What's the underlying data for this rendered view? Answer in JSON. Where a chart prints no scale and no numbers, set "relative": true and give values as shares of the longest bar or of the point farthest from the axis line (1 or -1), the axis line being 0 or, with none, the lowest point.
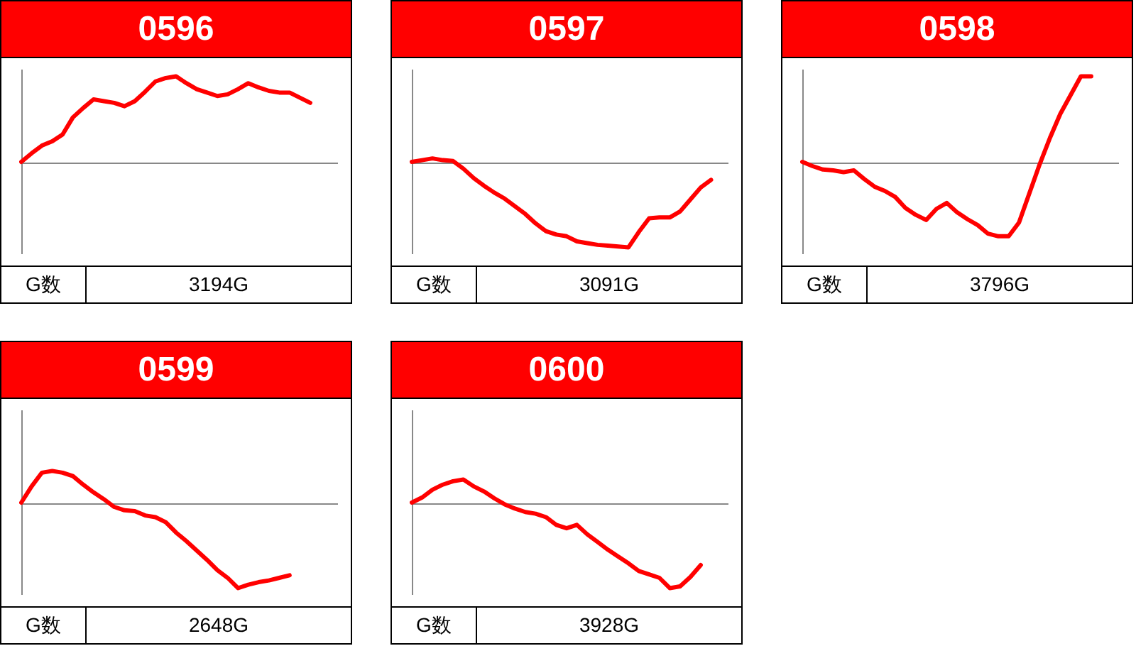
{
  "chart_data": [
    {
      "type": "line",
      "title": "0596",
      "relative": true,
      "categories": [
        null,
        null,
        null,
        null,
        null,
        null,
        null,
        null,
        null,
        null,
        null,
        null,
        null,
        null,
        null,
        null,
        null,
        null,
        null,
        null,
        null,
        null,
        null,
        null,
        null,
        null,
        null,
        null,
        null,
        null,
        null
      ],
      "series": [
        {
          "color": "#ff0000",
          "values": [
            0,
            0.1,
            0.19,
            0.24,
            0.32,
            0.52,
            0.63,
            0.73,
            0.71,
            0.69,
            0.65,
            0.71,
            0.82,
            0.94,
            0.98,
            1,
            0.92,
            0.85,
            0.81,
            0.77,
            0.79,
            0.85,
            0.92,
            0.87,
            0.83,
            0.81,
            0.81,
            0.75,
            0.69,
            null,
            null
          ]
        }
      ],
      "annotations": [
        "G数",
        "3194G"
      ]
    },
    {
      "type": "line",
      "title": "0597",
      "relative": true,
      "categories": [
        null,
        null,
        null,
        null,
        null,
        null,
        null,
        null,
        null,
        null,
        null,
        null,
        null,
        null,
        null,
        null,
        null,
        null,
        null,
        null,
        null,
        null,
        null,
        null,
        null,
        null,
        null,
        null,
        null,
        null,
        null
      ],
      "series": [
        {
          "color": "#ff0000",
          "values": [
            0,
            0.02,
            0.04,
            0.02,
            0.01,
            -0.08,
            -0.19,
            -0.28,
            -0.36,
            -0.43,
            -0.52,
            -0.61,
            -0.72,
            -0.81,
            -0.85,
            -0.87,
            -0.93,
            -0.95,
            -0.97,
            -0.98,
            -0.99,
            -1,
            -0.82,
            -0.66,
            -0.65,
            -0.65,
            -0.58,
            -0.44,
            -0.3,
            -0.21,
            null
          ]
        }
      ],
      "annotations": [
        "G数",
        "3091G"
      ]
    },
    {
      "type": "line",
      "title": "0598",
      "relative": true,
      "categories": [
        null,
        null,
        null,
        null,
        null,
        null,
        null,
        null,
        null,
        null,
        null,
        null,
        null,
        null,
        null,
        null,
        null,
        null,
        null,
        null,
        null,
        null,
        null,
        null,
        null,
        null,
        null,
        null,
        null,
        null,
        null
      ],
      "series": [
        {
          "color": "#ff0000",
          "values": [
            0,
            -0.05,
            -0.09,
            -0.1,
            -0.12,
            -0.1,
            -0.2,
            -0.29,
            -0.34,
            -0.41,
            -0.54,
            -0.62,
            -0.68,
            -0.55,
            -0.48,
            -0.59,
            -0.67,
            -0.74,
            -0.84,
            -0.87,
            -0.87,
            -0.71,
            -0.37,
            -0.03,
            0.28,
            0.56,
            0.78,
            1,
            1,
            null,
            null
          ]
        }
      ],
      "annotations": [
        "G数",
        "3796G"
      ]
    },
    {
      "type": "line",
      "title": "0599",
      "relative": true,
      "categories": [
        null,
        null,
        null,
        null,
        null,
        null,
        null,
        null,
        null,
        null,
        null,
        null,
        null,
        null,
        null,
        null,
        null,
        null,
        null,
        null,
        null,
        null,
        null,
        null,
        null,
        null,
        null,
        null,
        null,
        null,
        null
      ],
      "series": [
        {
          "color": "#ff0000",
          "values": [
            0,
            0.19,
            0.35,
            0.37,
            0.35,
            0.31,
            0.21,
            0.12,
            0.04,
            -0.05,
            -0.09,
            -0.1,
            -0.15,
            -0.17,
            -0.23,
            -0.35,
            -0.45,
            -0.56,
            -0.67,
            -0.79,
            -0.88,
            -1,
            -0.96,
            -0.93,
            -0.91,
            -0.88,
            -0.85,
            null,
            null,
            null,
            null
          ]
        }
      ],
      "annotations": [
        "G数",
        "2648G"
      ]
    },
    {
      "type": "line",
      "title": "0600",
      "relative": true,
      "categories": [
        null,
        null,
        null,
        null,
        null,
        null,
        null,
        null,
        null,
        null,
        null,
        null,
        null,
        null,
        null,
        null,
        null,
        null,
        null,
        null,
        null,
        null,
        null,
        null,
        null,
        null,
        null,
        null,
        null,
        null,
        null
      ],
      "series": [
        {
          "color": "#ff0000",
          "values": [
            0,
            0.06,
            0.15,
            0.21,
            0.25,
            0.27,
            0.19,
            0.13,
            0.05,
            -0.02,
            -0.07,
            -0.11,
            -0.13,
            -0.17,
            -0.26,
            -0.3,
            -0.26,
            -0.37,
            -0.46,
            -0.55,
            -0.63,
            -0.71,
            -0.8,
            -0.84,
            -0.88,
            -1,
            -0.98,
            -0.87,
            -0.73,
            null,
            null
          ]
        }
      ],
      "annotations": [
        "G数",
        "3928G"
      ]
    }
  ]
}
